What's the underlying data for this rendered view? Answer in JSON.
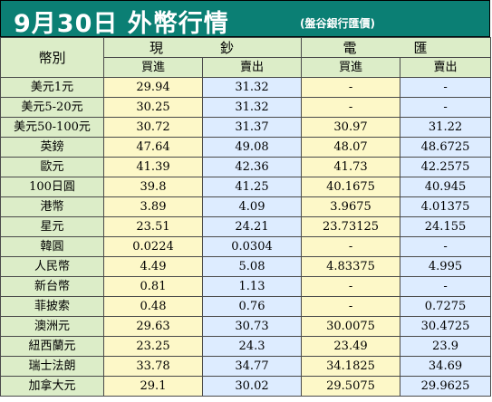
{
  "title": "9月30日 外幣行情",
  "subtitle": "(盤谷銀行匯價)",
  "header": {
    "currency": "幣別",
    "cash": "現　鈔",
    "wire": "電　匯",
    "cash_buy": "買進",
    "cash_sell": "賣出",
    "wire_buy": "買進",
    "wire_sell": "賣出"
  },
  "rows": [
    {
      "name": "美元1元",
      "cash_buy": "29.94",
      "cash_sell": "31.32",
      "wire_buy": "-",
      "wire_sell": "-"
    },
    {
      "name": "美元5-20元",
      "cash_buy": "30.25",
      "cash_sell": "31.32",
      "wire_buy": "-",
      "wire_sell": "-"
    },
    {
      "name": "美元50-100元",
      "cash_buy": "30.72",
      "cash_sell": "31.37",
      "wire_buy": "30.97",
      "wire_sell": "31.22"
    },
    {
      "name": "英鎊",
      "cash_buy": "47.64",
      "cash_sell": "49.08",
      "wire_buy": "48.07",
      "wire_sell": "48.6725"
    },
    {
      "name": "歐元",
      "cash_buy": "41.39",
      "cash_sell": "42.36",
      "wire_buy": "41.73",
      "wire_sell": "42.2575"
    },
    {
      "name": "100日圓",
      "cash_buy": "39.8",
      "cash_sell": "41.25",
      "wire_buy": "40.1675",
      "wire_sell": "40.945"
    },
    {
      "name": "港幣",
      "cash_buy": "3.89",
      "cash_sell": "4.09",
      "wire_buy": "3.9675",
      "wire_sell": "4.01375"
    },
    {
      "name": "星元",
      "cash_buy": "23.51",
      "cash_sell": "24.21",
      "wire_buy": "23.73125",
      "wire_sell": "24.155"
    },
    {
      "name": "韓圓",
      "cash_buy": "0.0224",
      "cash_sell": "0.0304",
      "wire_buy": "-",
      "wire_sell": "-"
    },
    {
      "name": "人民幣",
      "cash_buy": "4.49",
      "cash_sell": "5.08",
      "wire_buy": "4.83375",
      "wire_sell": "4.995"
    },
    {
      "name": "新台幣",
      "cash_buy": "0.81",
      "cash_sell": "1.13",
      "wire_buy": "-",
      "wire_sell": "-"
    },
    {
      "name": "菲披索",
      "cash_buy": "0.48",
      "cash_sell": "0.76",
      "wire_buy": "-",
      "wire_sell": "0.7275"
    },
    {
      "name": "澳洲元",
      "cash_buy": "29.63",
      "cash_sell": "30.73",
      "wire_buy": "30.0075",
      "wire_sell": "30.4725"
    },
    {
      "name": "紐西蘭元",
      "cash_buy": "23.25",
      "cash_sell": "24.3",
      "wire_buy": "23.49",
      "wire_sell": "23.9"
    },
    {
      "name": "瑞士法朗",
      "cash_buy": "33.78",
      "cash_sell": "34.77",
      "wire_buy": "34.1825",
      "wire_sell": "34.69"
    },
    {
      "name": "加拿大元",
      "cash_buy": "29.1",
      "cash_sell": "30.02",
      "wire_buy": "29.5075",
      "wire_sell": "29.9625"
    }
  ],
  "colors": {
    "title_bg": "#0b7f74",
    "header_bg": "#dcedc8",
    "buy_bg": "#fdf8c8",
    "sell_bg": "#ddecff"
  }
}
